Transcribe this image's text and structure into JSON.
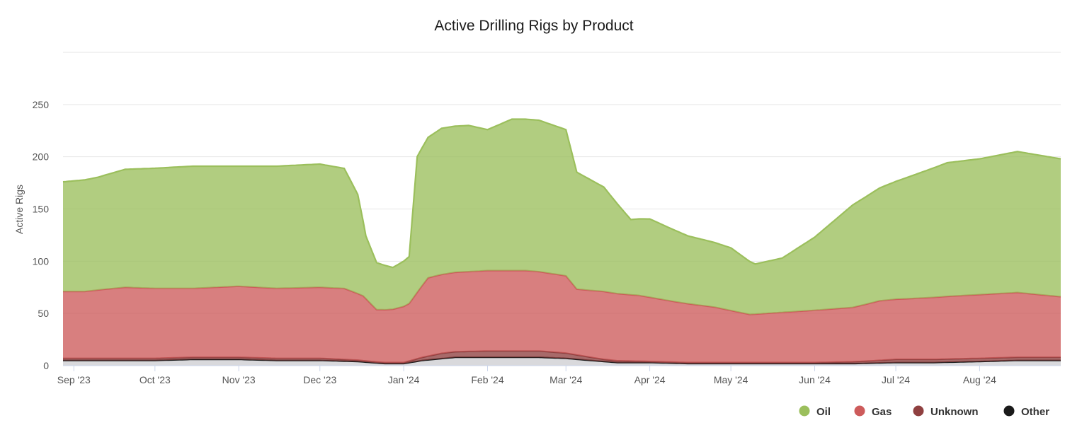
{
  "chart_data": {
    "type": "area",
    "stacked": true,
    "title": "Active Drilling Rigs by Product",
    "ylabel": "Active Rigs",
    "xlabel": "",
    "ylim": [
      0,
      300
    ],
    "yticks": [
      0,
      50,
      100,
      150,
      200,
      250
    ],
    "x_range": [
      "2023-08-28",
      "2024-08-31"
    ],
    "xtick_labels": [
      {
        "date": "2023-09-01",
        "label": "Sep '23"
      },
      {
        "date": "2023-10-01",
        "label": "Oct '23"
      },
      {
        "date": "2023-11-01",
        "label": "Nov '23"
      },
      {
        "date": "2023-12-01",
        "label": "Dec '23"
      },
      {
        "date": "2024-01-01",
        "label": "Jan '24"
      },
      {
        "date": "2024-02-01",
        "label": "Feb '24"
      },
      {
        "date": "2024-03-01",
        "label": "Mar '24"
      },
      {
        "date": "2024-04-01",
        "label": "Apr '24"
      },
      {
        "date": "2024-05-01",
        "label": "May '24"
      },
      {
        "date": "2024-06-01",
        "label": "Jun '24"
      },
      {
        "date": "2024-07-01",
        "label": "Jul '24"
      },
      {
        "date": "2024-08-01",
        "label": "Aug '24"
      }
    ],
    "grid": true,
    "legend_position": "bottom-right",
    "series": [
      {
        "name": "Other",
        "color": "#1a1a1a",
        "points": [
          [
            "2023-08-28",
            5
          ],
          [
            "2023-09-15",
            5
          ],
          [
            "2023-10-01",
            5
          ],
          [
            "2023-10-15",
            6
          ],
          [
            "2023-11-01",
            6
          ],
          [
            "2023-11-15",
            5
          ],
          [
            "2023-12-01",
            5
          ],
          [
            "2023-12-15",
            4
          ],
          [
            "2023-12-25",
            2
          ],
          [
            "2024-01-01",
            2
          ],
          [
            "2024-01-08",
            5
          ],
          [
            "2024-01-20",
            8
          ],
          [
            "2024-02-01",
            8
          ],
          [
            "2024-02-20",
            8
          ],
          [
            "2024-03-01",
            7
          ],
          [
            "2024-03-10",
            5
          ],
          [
            "2024-03-20",
            3
          ],
          [
            "2024-04-01",
            3
          ],
          [
            "2024-04-15",
            2
          ],
          [
            "2024-05-01",
            2
          ],
          [
            "2024-05-15",
            2
          ],
          [
            "2024-06-01",
            2
          ],
          [
            "2024-06-15",
            2
          ],
          [
            "2024-07-01",
            3
          ],
          [
            "2024-07-15",
            3
          ],
          [
            "2024-08-01",
            4
          ],
          [
            "2024-08-15",
            5
          ],
          [
            "2024-08-31",
            5
          ]
        ]
      },
      {
        "name": "Unknown",
        "color": "#8f4040",
        "points": [
          [
            "2023-08-28",
            2
          ],
          [
            "2023-09-15",
            2
          ],
          [
            "2023-10-01",
            2
          ],
          [
            "2023-11-01",
            2
          ],
          [
            "2023-12-01",
            2
          ],
          [
            "2023-12-20",
            1
          ],
          [
            "2024-01-01",
            1
          ],
          [
            "2024-01-15",
            5
          ],
          [
            "2024-02-01",
            6
          ],
          [
            "2024-02-20",
            6
          ],
          [
            "2024-03-01",
            5
          ],
          [
            "2024-03-15",
            2
          ],
          [
            "2024-04-01",
            1
          ],
          [
            "2024-05-01",
            1
          ],
          [
            "2024-06-01",
            1
          ],
          [
            "2024-06-20",
            2
          ],
          [
            "2024-07-01",
            3
          ],
          [
            "2024-08-01",
            3
          ],
          [
            "2024-08-31",
            3
          ]
        ]
      },
      {
        "name": "Gas",
        "color": "#cd5b5b",
        "points": [
          [
            "2023-08-28",
            64
          ],
          [
            "2023-09-05",
            64
          ],
          [
            "2023-09-12",
            66
          ],
          [
            "2023-09-20",
            68
          ],
          [
            "2023-10-01",
            67
          ],
          [
            "2023-10-15",
            66
          ],
          [
            "2023-11-01",
            68
          ],
          [
            "2023-11-15",
            67
          ],
          [
            "2023-12-01",
            68
          ],
          [
            "2023-12-10",
            68
          ],
          [
            "2023-12-17",
            62
          ],
          [
            "2023-12-22",
            50
          ],
          [
            "2023-12-28",
            51
          ],
          [
            "2024-01-03",
            55
          ],
          [
            "2024-01-10",
            75
          ],
          [
            "2024-01-20",
            76
          ],
          [
            "2024-02-01",
            77
          ],
          [
            "2024-02-15",
            77
          ],
          [
            "2024-03-01",
            74
          ],
          [
            "2024-03-05",
            63
          ],
          [
            "2024-03-15",
            65
          ],
          [
            "2024-03-28",
            63
          ],
          [
            "2024-04-10",
            58
          ],
          [
            "2024-04-25",
            53
          ],
          [
            "2024-05-08",
            46
          ],
          [
            "2024-05-20",
            48
          ],
          [
            "2024-06-01",
            50
          ],
          [
            "2024-06-15",
            52
          ],
          [
            "2024-06-25",
            57
          ],
          [
            "2024-07-05",
            58
          ],
          [
            "2024-07-20",
            60
          ],
          [
            "2024-08-01",
            61
          ],
          [
            "2024-08-15",
            62
          ],
          [
            "2024-08-31",
            58
          ]
        ]
      },
      {
        "name": "Oil",
        "color": "#9bbf5c",
        "points": [
          [
            "2023-08-28",
            105
          ],
          [
            "2023-09-10",
            108
          ],
          [
            "2023-09-20",
            113
          ],
          [
            "2023-10-01",
            115
          ],
          [
            "2023-10-15",
            117
          ],
          [
            "2023-11-01",
            115
          ],
          [
            "2023-11-15",
            117
          ],
          [
            "2023-12-01",
            118
          ],
          [
            "2023-12-10",
            115
          ],
          [
            "2023-12-15",
            95
          ],
          [
            "2023-12-18",
            60
          ],
          [
            "2023-12-22",
            45
          ],
          [
            "2023-12-28",
            40
          ],
          [
            "2024-01-03",
            45
          ],
          [
            "2024-01-06",
            130
          ],
          [
            "2024-01-15",
            140
          ],
          [
            "2024-01-25",
            140
          ],
          [
            "2024-02-01",
            135
          ],
          [
            "2024-02-10",
            145
          ],
          [
            "2024-02-20",
            145
          ],
          [
            "2024-03-01",
            140
          ],
          [
            "2024-03-05",
            112
          ],
          [
            "2024-03-15",
            100
          ],
          [
            "2024-03-25",
            72
          ],
          [
            "2024-04-01",
            75
          ],
          [
            "2024-04-15",
            65
          ],
          [
            "2024-05-01",
            60
          ],
          [
            "2024-05-10",
            48
          ],
          [
            "2024-05-20",
            52
          ],
          [
            "2024-06-01",
            70
          ],
          [
            "2024-06-15",
            98
          ],
          [
            "2024-06-25",
            108
          ],
          [
            "2024-07-05",
            116
          ],
          [
            "2024-07-20",
            128
          ],
          [
            "2024-08-01",
            130
          ],
          [
            "2024-08-15",
            135
          ],
          [
            "2024-08-31",
            132
          ]
        ]
      }
    ],
    "legend": [
      {
        "label": "Oil",
        "color": "#9bbf5c"
      },
      {
        "label": "Gas",
        "color": "#cd5b5b"
      },
      {
        "label": "Unknown",
        "color": "#8f4040"
      },
      {
        "label": "Other",
        "color": "#1a1a1a"
      }
    ]
  }
}
